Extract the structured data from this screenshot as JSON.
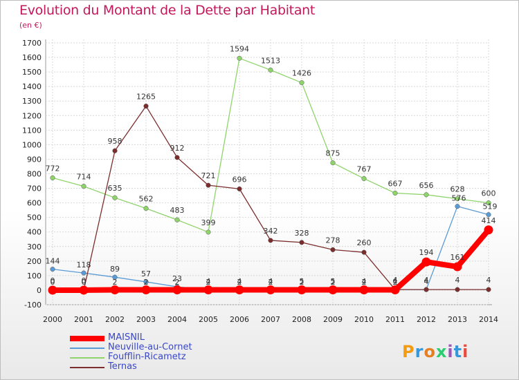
{
  "chart_data": {
    "type": "line",
    "title": "Evolution du Montant de la Dette par Habitant",
    "subtitle": "(en €)",
    "x": [
      "2000",
      "2001",
      "2002",
      "2003",
      "2004",
      "2005",
      "2006",
      "2007",
      "2008",
      "2009",
      "2010",
      "2011",
      "2012",
      "2013",
      "2014"
    ],
    "ylim": [
      -100,
      1700
    ],
    "yticks": [
      -100,
      0,
      100,
      200,
      300,
      400,
      500,
      600,
      700,
      800,
      900,
      1000,
      1100,
      1200,
      1300,
      1400,
      1500,
      1600,
      1700
    ],
    "grid": true,
    "legend_position": "bottom-left",
    "series": [
      {
        "name": "MAISNIL",
        "color": "#ff0000",
        "values": [
          0,
          0,
          2,
          2,
          2,
          2,
          2,
          2,
          2,
          2,
          2,
          2,
          194,
          161,
          414
        ],
        "labels": [
          null,
          null,
          null,
          null,
          null,
          null,
          null,
          null,
          null,
          null,
          null,
          null,
          "194",
          "161",
          "414"
        ]
      },
      {
        "name": "Neuville-au-Cornet",
        "color": "#5b9bd5",
        "values": [
          144,
          118,
          89,
          57,
          23,
          4,
          4,
          4,
          5,
          5,
          4,
          4,
          4,
          576,
          519
        ],
        "labels": [
          "144",
          "118",
          "89",
          "57",
          "23",
          "4",
          "4",
          "4",
          "5",
          "5",
          "4",
          "4",
          "4",
          "576",
          "519"
        ]
      },
      {
        "name": "Foufflin-Ricametz",
        "color": "#8fd46b",
        "values": [
          772,
          714,
          635,
          562,
          483,
          399,
          1594,
          1513,
          1426,
          875,
          767,
          667,
          656,
          628,
          600
        ],
        "labels": [
          "772",
          "714",
          "635",
          "562",
          "483",
          "399",
          "1594",
          "1513",
          "1426",
          "875",
          "767",
          "667",
          "656",
          "628",
          "600"
        ]
      },
      {
        "name": "Ternas",
        "color": "#7b2d2d",
        "values": [
          0,
          0,
          958,
          1265,
          912,
          721,
          696,
          342,
          328,
          278,
          260,
          4,
          4,
          4,
          4
        ],
        "labels": [
          "0",
          "0",
          "958",
          "1265",
          "912",
          "721",
          "696",
          "342",
          "328",
          "278",
          "260",
          "4",
          "4",
          "4",
          "4"
        ]
      }
    ],
    "zero_labels": [
      "0",
      "0",
      "2",
      "2",
      "2",
      "2",
      "2",
      "2",
      "2",
      "2",
      "2",
      "2"
    ]
  },
  "branding": {
    "logo_text": "Proxiti"
  }
}
